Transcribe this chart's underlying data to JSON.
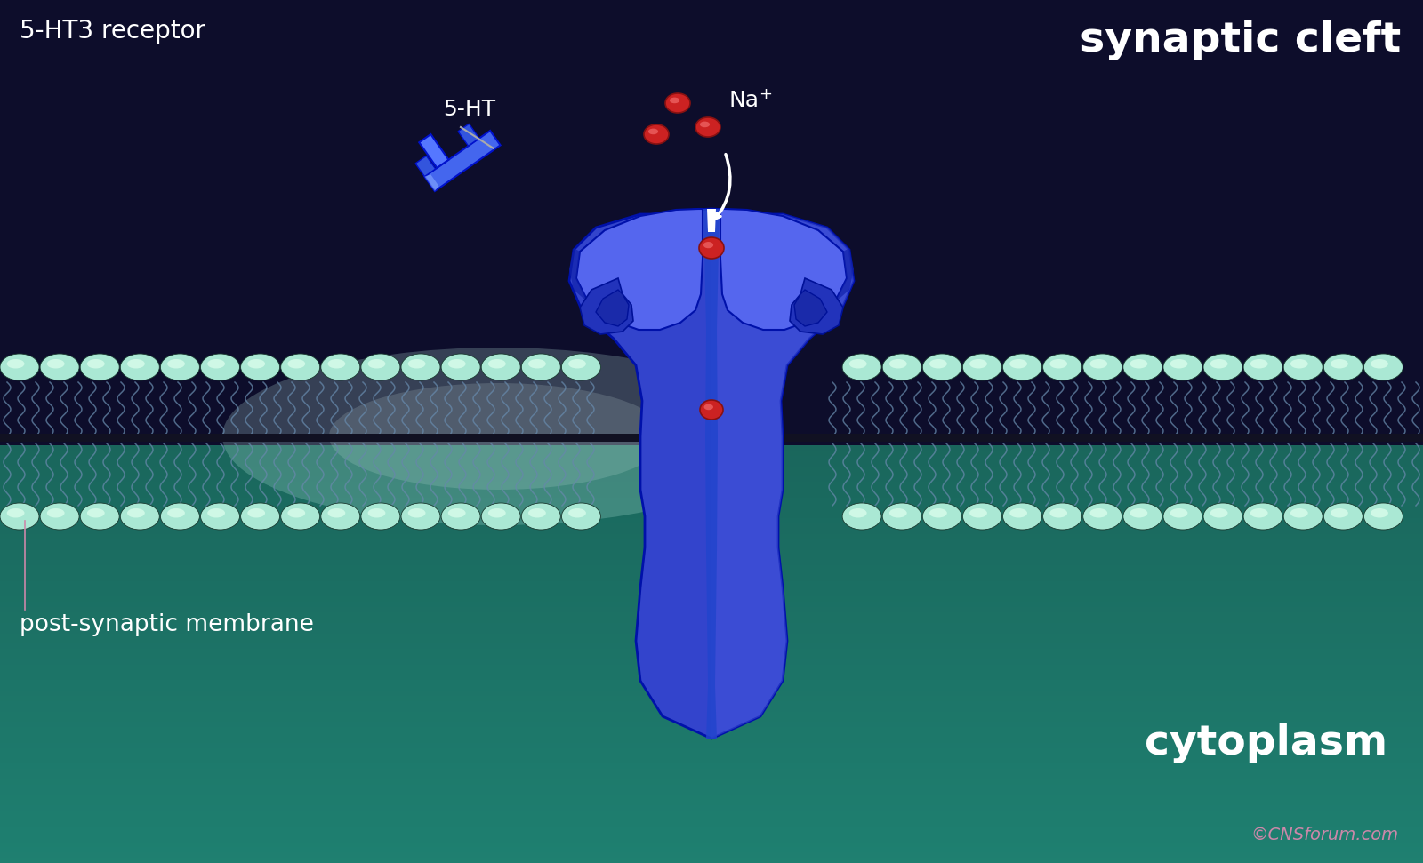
{
  "bg_top_color": "#0d0d2b",
  "bg_bottom_color_top": "#1a6b60",
  "bg_bottom_color_bot": "#1d8070",
  "membrane_bead_color": "#a8e8d8",
  "membrane_bead_dark": "#2d3d38",
  "membrane_tail_color": "#5588aa",
  "receptor_main": "#3344cc",
  "receptor_light": "#5577ee",
  "receptor_highlight": "#7799ff",
  "receptor_dark": "#1122aa",
  "receptor_channel": "#6678dd",
  "ion_color": "#cc2222",
  "ion_hl": "#ee6666",
  "text_white": "#ffffff",
  "copyright_color": "#cc88aa",
  "title_5ht3": "5-HT3 receptor",
  "title_synaptic": "synaptic cleft",
  "title_cytoplasm": "cytoplasm",
  "label_membrane": "post-synaptic membrane",
  "label_5ht": "5-HT",
  "label_na": "Na+",
  "copyright": "©CNSforum.com",
  "figwidth": 16.0,
  "figheight": 9.71,
  "dpi": 100
}
